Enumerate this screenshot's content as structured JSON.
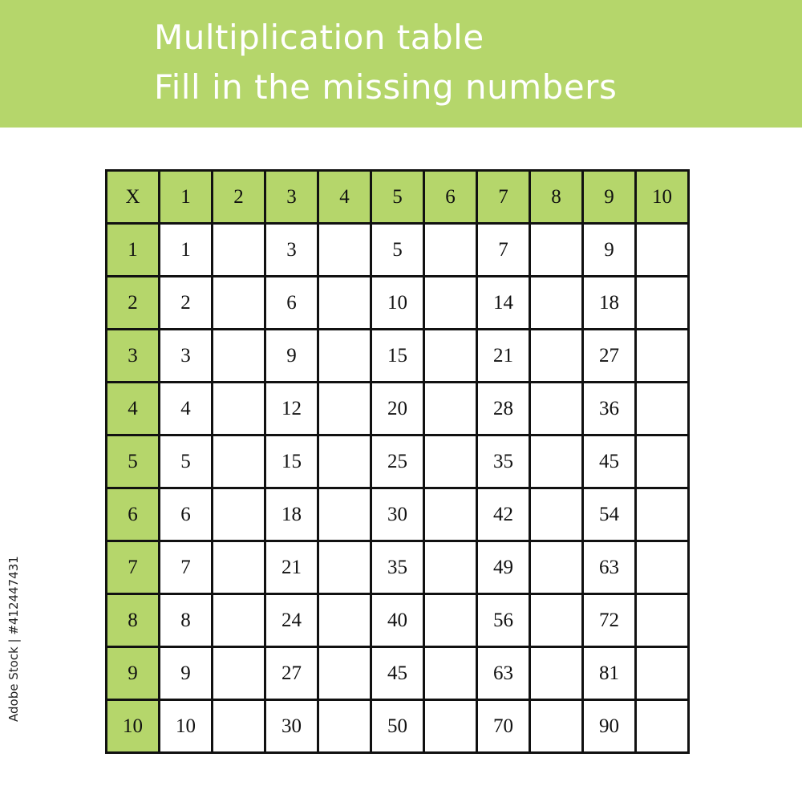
{
  "header": {
    "title_line1": "Multiplication table",
    "title_line2": "Fill in the missing numbers",
    "background_color": "#b5d66b"
  },
  "table": {
    "corner": "X",
    "column_headers": [
      "1",
      "2",
      "3",
      "4",
      "5",
      "6",
      "7",
      "8",
      "9",
      "10"
    ],
    "rows": [
      {
        "header": "1",
        "cells": [
          "1",
          "",
          "3",
          "",
          "5",
          "",
          "7",
          "",
          "9",
          ""
        ]
      },
      {
        "header": "2",
        "cells": [
          "2",
          "",
          "6",
          "",
          "10",
          "",
          "14",
          "",
          "18",
          ""
        ]
      },
      {
        "header": "3",
        "cells": [
          "3",
          "",
          "9",
          "",
          "15",
          "",
          "21",
          "",
          "27",
          ""
        ]
      },
      {
        "header": "4",
        "cells": [
          "4",
          "",
          "12",
          "",
          "20",
          "",
          "28",
          "",
          "36",
          ""
        ]
      },
      {
        "header": "5",
        "cells": [
          "5",
          "",
          "15",
          "",
          "25",
          "",
          "35",
          "",
          "45",
          ""
        ]
      },
      {
        "header": "6",
        "cells": [
          "6",
          "",
          "18",
          "",
          "30",
          "",
          "42",
          "",
          "54",
          ""
        ]
      },
      {
        "header": "7",
        "cells": [
          "7",
          "",
          "21",
          "",
          "35",
          "",
          "49",
          "",
          "63",
          ""
        ]
      },
      {
        "header": "8",
        "cells": [
          "8",
          "",
          "24",
          "",
          "40",
          "",
          "56",
          "",
          "72",
          ""
        ]
      },
      {
        "header": "9",
        "cells": [
          "9",
          "",
          "27",
          "",
          "45",
          "",
          "63",
          "",
          "81",
          ""
        ]
      },
      {
        "header": "10",
        "cells": [
          "10",
          "",
          "30",
          "",
          "50",
          "",
          "70",
          "",
          "90",
          ""
        ]
      }
    ]
  },
  "watermark": {
    "side_text": "Adobe Stock | #412447431"
  }
}
